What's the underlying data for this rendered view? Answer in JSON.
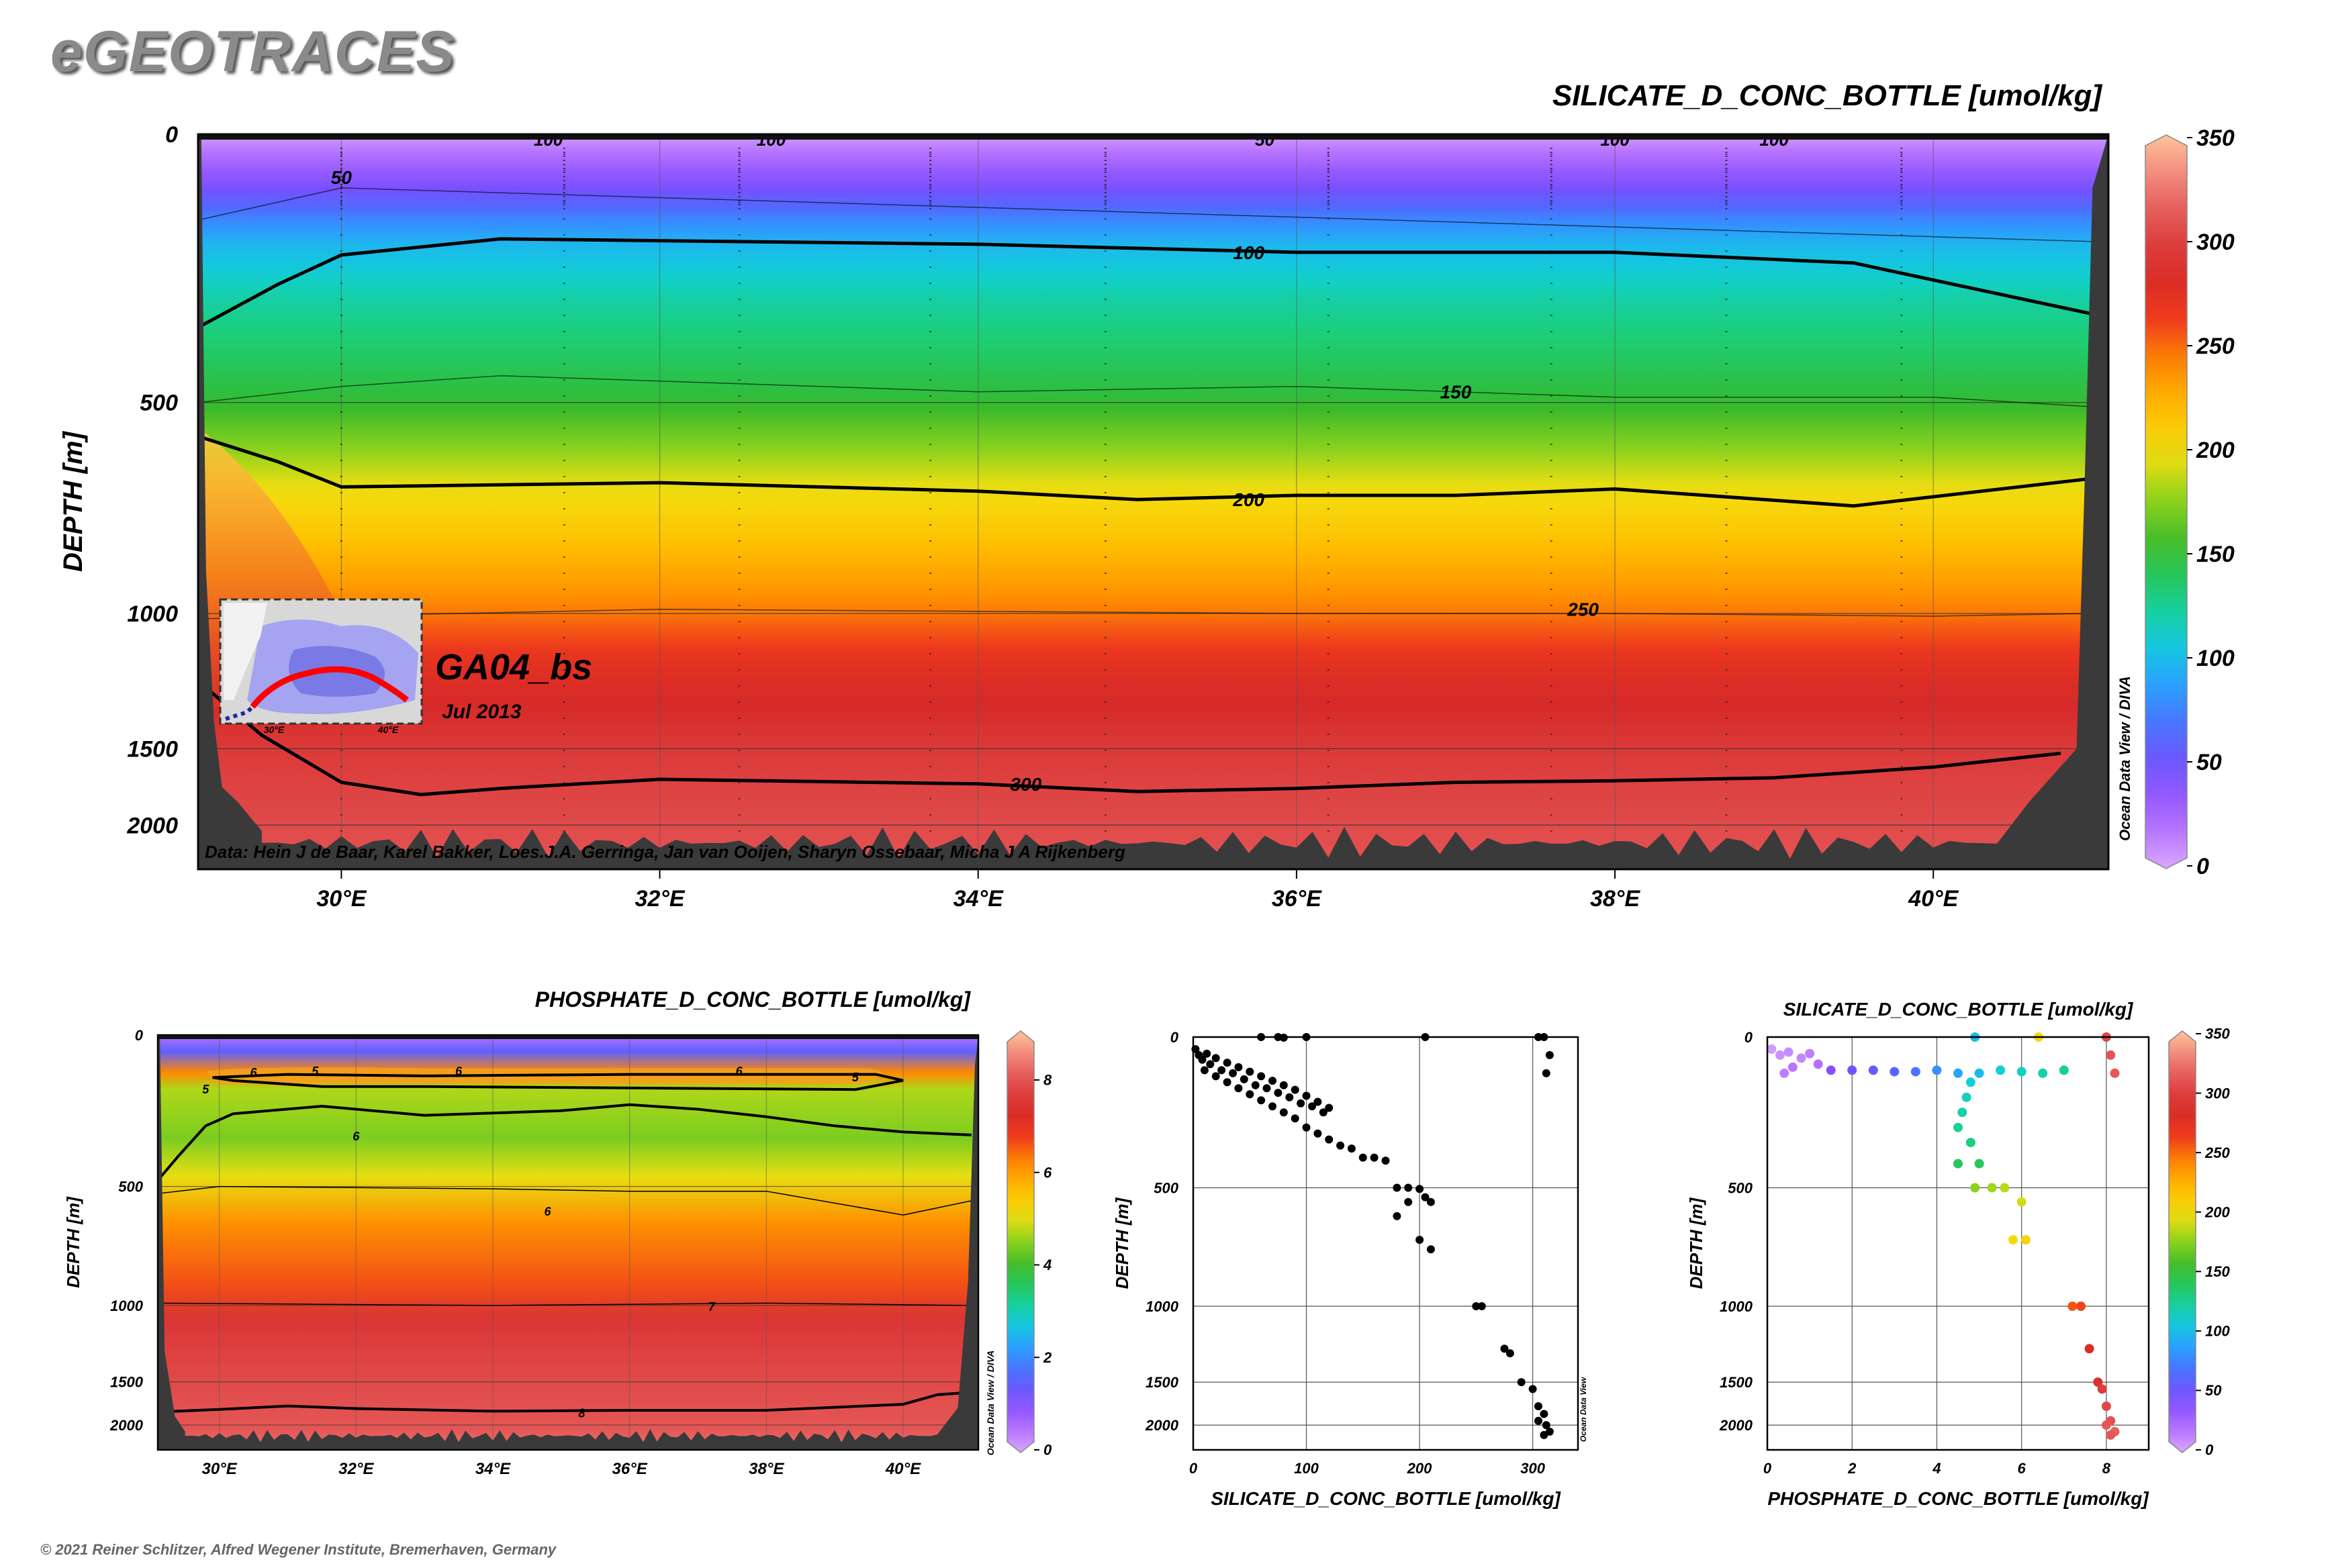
{
  "brand": "eGEOTRACES",
  "copyright": "© 2021 Reiner Schlitzer, Alfred Wegener Institute, Bremerhaven, Germany",
  "colors": {
    "scale": [
      "#d9a8ff",
      "#b06bff",
      "#7f4bff",
      "#4f6bff",
      "#2aa0ff",
      "#10d0d8",
      "#1bcf7a",
      "#36b82a",
      "#8ad21e",
      "#f3df10",
      "#ffbf00",
      "#ff8a00",
      "#ef3a1d",
      "#d62a28",
      "#e04a4a",
      "#f0807a",
      "#ffc49a"
    ],
    "land": "#3a3a3a",
    "track": "#ff0000"
  },
  "chart_data": [
    {
      "type": "heatmap",
      "id": "main-silicate-section",
      "title": "SILICATE_D_CONC_BOTTLE [umol/kg]",
      "ylabel": "DEPTH [m]",
      "xlabel": "",
      "x_ticks": [
        "30°E",
        "32°E",
        "34°E",
        "36°E",
        "38°E",
        "40°E"
      ],
      "x_tick_values": [
        30,
        32,
        34,
        36,
        38,
        40
      ],
      "xlim": [
        29.1,
        41.1
      ],
      "y_ticks": [
        "0",
        "500",
        "1000",
        "1500",
        "2000"
      ],
      "y_tick_values": [
        0,
        500,
        1000,
        1500,
        2000
      ],
      "ylim": [
        0,
        2150
      ],
      "colorbar": {
        "min": 0,
        "max": 350,
        "ticks": [
          "0",
          "50",
          "100",
          "150",
          "200",
          "250",
          "300",
          "350"
        ],
        "tick_values": [
          0,
          50,
          100,
          150,
          200,
          250,
          300,
          350
        ],
        "side_label": "Ocean Data View / DIVA"
      },
      "contours": [
        {
          "label": "50",
          "value": 50,
          "depth_profile": [
            [
              29.1,
              160
            ],
            [
              30,
              100
            ],
            [
              41,
              200
            ]
          ]
        },
        {
          "label": "100",
          "value": 100,
          "depth_profile": [
            [
              29.1,
              360
            ],
            [
              29.6,
              280
            ],
            [
              30,
              225
            ],
            [
              31,
              195
            ],
            [
              34,
              205
            ],
            [
              36,
              220
            ],
            [
              38,
              220
            ],
            [
              39.5,
              240
            ],
            [
              41,
              335
            ]
          ]
        },
        {
          "label": "150",
          "value": 150,
          "depth_profile": [
            [
              29.1,
              500
            ],
            [
              30,
              470
            ],
            [
              31,
              450
            ],
            [
              32,
              460
            ],
            [
              34,
              480
            ],
            [
              36,
              470
            ],
            [
              38,
              490
            ],
            [
              40,
              490
            ],
            [
              41,
              510
            ]
          ]
        },
        {
          "label": "200",
          "value": 200,
          "depth_profile": [
            [
              29.1,
              580
            ],
            [
              29.6,
              640
            ],
            [
              30,
              700
            ],
            [
              32,
              690
            ],
            [
              34,
              710
            ],
            [
              35,
              730
            ],
            [
              36,
              720
            ],
            [
              37,
              720
            ],
            [
              38,
              705
            ],
            [
              39.5,
              745
            ],
            [
              41,
              680
            ]
          ]
        },
        {
          "label": "250",
          "value": 250,
          "depth_profile": [
            [
              29.1,
              1020
            ],
            [
              32,
              990
            ],
            [
              34,
              995
            ],
            [
              36,
              1000
            ],
            [
              38,
              1000
            ],
            [
              40,
              1010
            ],
            [
              41,
              1000
            ]
          ]
        },
        {
          "label": "300",
          "value": 300,
          "depth_profile": [
            [
              29.1,
              1250
            ],
            [
              29.5,
              1450
            ],
            [
              30,
              1720
            ],
            [
              30.5,
              1800
            ],
            [
              31,
              1760
            ],
            [
              32,
              1700
            ],
            [
              34,
              1730
            ],
            [
              35,
              1780
            ],
            [
              36,
              1760
            ],
            [
              37,
              1720
            ],
            [
              38,
              1710
            ],
            [
              39,
              1690
            ],
            [
              40,
              1620
            ],
            [
              40.8,
              1530
            ]
          ]
        }
      ],
      "inset": {
        "label": "GA04_bs",
        "sublabel": "Jul 2013",
        "x_ticks": [
          "30°E",
          "40°E"
        ]
      },
      "credit": "Data: Hein J de Baar, Karel Bakker, Loes.J.A. Gerringa, Jan van Ooijen, Sharyn Ossebaar, Micha J A Rijkenberg"
    },
    {
      "type": "heatmap",
      "id": "phosphate-section",
      "title": "PHOSPHATE_D_CONC_BOTTLE [umol/kg]",
      "ylabel": "DEPTH [m]",
      "x_ticks": [
        "30°E",
        "32°E",
        "34°E",
        "36°E",
        "38°E",
        "40°E"
      ],
      "x_tick_values": [
        30,
        32,
        34,
        36,
        38,
        40
      ],
      "xlim": [
        29.1,
        41.1
      ],
      "y_ticks": [
        "0",
        "500",
        "1000",
        "1500",
        "2000"
      ],
      "y_tick_values": [
        0,
        500,
        1000,
        1500,
        2000
      ],
      "ylim": [
        0,
        2150
      ],
      "colorbar": {
        "min": 0,
        "max": 9,
        "ticks": [
          "0",
          "2",
          "4",
          "6",
          "8"
        ],
        "tick_values": [
          0,
          2,
          4,
          6,
          8
        ],
        "side_label": "Ocean Data View / DIVA"
      },
      "contour_labels": [
        "6",
        "5",
        "5",
        "6",
        "6",
        "6",
        "5",
        "6",
        "7",
        "8"
      ]
    },
    {
      "type": "scatter",
      "id": "silicate-profile",
      "xlabel": "SILICATE_D_CONC_BOTTLE [umol/kg]",
      "ylabel": "DEPTH [m]",
      "x_ticks": [
        "0",
        "100",
        "200",
        "300"
      ],
      "x_tick_values": [
        0,
        100,
        200,
        300
      ],
      "xlim": [
        0,
        340
      ],
      "y_ticks": [
        "0",
        "500",
        "1000",
        "1500",
        "2000"
      ],
      "y_tick_values": [
        0,
        500,
        1000,
        1500,
        2000
      ],
      "ylim": [
        0,
        2150
      ],
      "side_label": "Ocean Data View",
      "points": [
        [
          2,
          40
        ],
        [
          5,
          60
        ],
        [
          8,
          75
        ],
        [
          12,
          55
        ],
        [
          15,
          90
        ],
        [
          20,
          70
        ],
        [
          25,
          110
        ],
        [
          30,
          85
        ],
        [
          35,
          120
        ],
        [
          40,
          100
        ],
        [
          45,
          140
        ],
        [
          50,
          115
        ],
        [
          55,
          160
        ],
        [
          60,
          130
        ],
        [
          65,
          170
        ],
        [
          70,
          145
        ],
        [
          75,
          185
        ],
        [
          80,
          160
        ],
        [
          85,
          200
        ],
        [
          90,
          175
        ],
        [
          95,
          220
        ],
        [
          100,
          195
        ],
        [
          105,
          230
        ],
        [
          110,
          215
        ],
        [
          115,
          250
        ],
        [
          120,
          235
        ],
        [
          10,
          110
        ],
        [
          20,
          130
        ],
        [
          30,
          150
        ],
        [
          40,
          170
        ],
        [
          50,
          190
        ],
        [
          60,
          210
        ],
        [
          70,
          230
        ],
        [
          80,
          250
        ],
        [
          90,
          270
        ],
        [
          100,
          300
        ],
        [
          110,
          320
        ],
        [
          120,
          340
        ],
        [
          130,
          360
        ],
        [
          140,
          370
        ],
        [
          150,
          400
        ],
        [
          160,
          400
        ],
        [
          170,
          410
        ],
        [
          180,
          500
        ],
        [
          190,
          500
        ],
        [
          200,
          505
        ],
        [
          205,
          540
        ],
        [
          210,
          560
        ],
        [
          190,
          560
        ],
        [
          180,
          620
        ],
        [
          200,
          720
        ],
        [
          210,
          760
        ],
        [
          250,
          1000
        ],
        [
          255,
          1000
        ],
        [
          275,
          1280
        ],
        [
          280,
          1310
        ],
        [
          290,
          1500
        ],
        [
          300,
          1580
        ],
        [
          305,
          1780
        ],
        [
          310,
          1870
        ],
        [
          305,
          1950
        ],
        [
          312,
          2000
        ],
        [
          315,
          2040
        ],
        [
          310,
          2060
        ],
        [
          60,
          0
        ],
        [
          75,
          0
        ],
        [
          80,
          2
        ],
        [
          100,
          0
        ],
        [
          205,
          0
        ],
        [
          305,
          0
        ],
        [
          310,
          0
        ],
        [
          315,
          60
        ],
        [
          312,
          120
        ]
      ]
    },
    {
      "type": "scatter",
      "id": "phosphate-vs-depth-colored",
      "title": "SILICATE_D_CONC_BOTTLE [umol/kg]",
      "xlabel": "PHOSPHATE_D_CONC_BOTTLE [umol/kg]",
      "ylabel": "DEPTH [m]",
      "x_ticks": [
        "0",
        "2",
        "4",
        "6",
        "8"
      ],
      "x_tick_values": [
        0,
        2,
        4,
        6,
        8
      ],
      "xlim": [
        0,
        9
      ],
      "y_ticks": [
        "0",
        "500",
        "1000",
        "1500",
        "2000"
      ],
      "y_tick_values": [
        0,
        500,
        1000,
        1500,
        2000
      ],
      "ylim": [
        0,
        2150
      ],
      "colorbar": {
        "min": 0,
        "max": 350,
        "ticks": [
          "0",
          "50",
          "100",
          "150",
          "200",
          "250",
          "300",
          "350"
        ],
        "tick_values": [
          0,
          50,
          100,
          150,
          200,
          250,
          300,
          350
        ]
      },
      "points": [
        [
          0.1,
          40,
          5
        ],
        [
          0.3,
          60,
          8
        ],
        [
          0.5,
          50,
          10
        ],
        [
          0.8,
          70,
          12
        ],
        [
          1.0,
          55,
          15
        ],
        [
          1.2,
          90,
          20
        ],
        [
          0.6,
          100,
          18
        ],
        [
          0.4,
          120,
          15
        ],
        [
          1.5,
          110,
          40
        ],
        [
          2.0,
          110,
          50
        ],
        [
          2.5,
          110,
          55
        ],
        [
          3.0,
          115,
          60
        ],
        [
          3.5,
          115,
          70
        ],
        [
          4.0,
          110,
          80
        ],
        [
          4.5,
          120,
          90
        ],
        [
          5.0,
          120,
          100
        ],
        [
          5.5,
          110,
          110
        ],
        [
          6.0,
          115,
          115
        ],
        [
          6.5,
          120,
          120
        ],
        [
          7.0,
          110,
          125
        ],
        [
          4.8,
          150,
          110
        ],
        [
          4.7,
          200,
          115
        ],
        [
          4.6,
          250,
          120
        ],
        [
          4.5,
          300,
          125
        ],
        [
          4.8,
          350,
          130
        ],
        [
          4.5,
          420,
          140
        ],
        [
          5.0,
          420,
          140
        ],
        [
          4.9,
          500,
          175
        ],
        [
          5.3,
          500,
          180
        ],
        [
          5.6,
          500,
          185
        ],
        [
          6.0,
          560,
          190
        ],
        [
          5.8,
          720,
          200
        ],
        [
          6.1,
          720,
          205
        ],
        [
          7.2,
          1000,
          255
        ],
        [
          7.4,
          1000,
          260
        ],
        [
          7.6,
          1280,
          280
        ],
        [
          7.8,
          1500,
          290
        ],
        [
          7.9,
          1580,
          298
        ],
        [
          8.0,
          1780,
          305
        ],
        [
          8.1,
          1950,
          310
        ],
        [
          8.0,
          2000,
          312
        ],
        [
          8.2,
          2040,
          315
        ],
        [
          8.1,
          2060,
          312
        ],
        [
          4.9,
          0,
          100
        ],
        [
          6.4,
          0,
          200
        ],
        [
          8.0,
          0,
          305
        ],
        [
          8.1,
          60,
          310
        ],
        [
          8.2,
          120,
          312
        ]
      ]
    }
  ]
}
